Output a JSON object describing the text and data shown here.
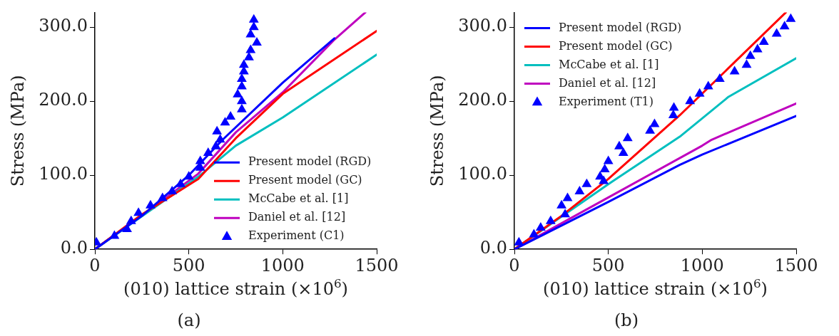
{
  "chart_data": [
    {
      "type": "line",
      "xlabel": "(010) lattice strain (×10$^{6}$)",
      "ylabel": "Stress (MPa)",
      "xlim": [
        0,
        1500
      ],
      "ylim": [
        0,
        320
      ],
      "xticks": [
        0,
        500,
        1000,
        1500
      ],
      "yticks": [
        {
          "value": 0,
          "label": "0.0"
        },
        {
          "value": 100,
          "label": "100.0"
        },
        {
          "value": 200,
          "label": "200.0"
        },
        {
          "value": 300,
          "label": "300.0"
        }
      ],
      "grid": false,
      "legend": "bottom right",
      "annotations": [
        "(a)"
      ],
      "series": [
        {
          "name": "Present model (RGD)",
          "color": "#0000ff",
          "marker": "none",
          "x": [
            0,
            250,
            500,
            680,
            1000,
            1275
          ],
          "values": [
            0,
            45,
            100,
            148,
            225,
            285
          ]
        },
        {
          "name": "Present model (GC)",
          "color": "#ff0000",
          "marker": "none",
          "x": [
            0,
            250,
            550,
            750,
            1000,
            1500
          ],
          "values": [
            0,
            47,
            95,
            150,
            210,
            295
          ]
        },
        {
          "name": "McCabe et al. [1]",
          "color": "#00bfbf",
          "marker": "none",
          "x": [
            0,
            550,
            750,
            1000,
            1500
          ],
          "values": [
            0,
            98,
            140,
            178,
            263
          ]
        },
        {
          "name": "Daniel et al. [12]",
          "color": "#bf00bf",
          "marker": "none",
          "x": [
            0,
            300,
            550,
            750,
            1000,
            1270,
            1440
          ],
          "values": [
            0,
            55,
            102,
            158,
            212,
            282,
            320
          ]
        },
        {
          "name": "Experiment (C1)",
          "type": "scatter",
          "color": "#0000ff",
          "marker": "triangle",
          "x": [
            8,
            104,
            171,
            193,
            232,
            296,
            360,
            411,
            456,
            500,
            561,
            561,
            603,
            644,
            667,
            650,
            693,
            722,
            782,
            782,
            760,
            782,
            782,
            793,
            793,
            820,
            829,
            862,
            829,
            846,
            846
          ],
          "values": [
            9,
            18,
            27,
            38,
            49,
            59,
            69,
            78,
            88,
            98,
            110,
            119,
            130,
            139,
            148,
            159,
            171,
            179,
            189,
            200,
            209,
            220,
            230,
            240,
            249,
            259,
            269,
            279,
            290,
            300,
            310
          ]
        }
      ]
    },
    {
      "type": "line",
      "xlabel": "(010) lattice strain (×10$^{6}$)",
      "ylabel": "Stress (MPa)",
      "xlim": [
        0,
        1500
      ],
      "ylim": [
        0,
        320
      ],
      "xticks": [
        0,
        500,
        1000,
        1500
      ],
      "yticks": [
        {
          "value": 0,
          "label": "0.0"
        },
        {
          "value": 100,
          "label": "100.0"
        },
        {
          "value": 200,
          "label": "200.0"
        },
        {
          "value": 300,
          "label": "300.0"
        }
      ],
      "grid": false,
      "legend": "top left",
      "annotations": [
        "(b)"
      ],
      "series": [
        {
          "name": "Present model (RGD)",
          "color": "#0000ff",
          "marker": "none",
          "x": [
            0,
            500,
            880,
            1000,
            1500
          ],
          "values": [
            0,
            64,
            114,
            128,
            180
          ]
        },
        {
          "name": "Present model (GC)",
          "color": "#ff0000",
          "marker": "none",
          "x": [
            0,
            250,
            500,
            880,
            1080,
            1445
          ],
          "values": [
            0,
            45,
            95,
            181,
            230,
            320
          ]
        },
        {
          "name": "McCabe et al. [1]",
          "color": "#00bfbf",
          "marker": "none",
          "x": [
            0,
            500,
            880,
            1140,
            1500
          ],
          "values": [
            0,
            88,
            152,
            206,
            258
          ]
        },
        {
          "name": "Daniel et al. [12]",
          "color": "#bf00bf",
          "marker": "none",
          "x": [
            0,
            500,
            1000,
            1050,
            1500
          ],
          "values": [
            0,
            70,
            140,
            148,
            197
          ]
        },
        {
          "name": "Experiment (T1)",
          "type": "scatter",
          "color": "#0000ff",
          "marker": "triangle",
          "x": [
            24,
            104,
            140,
            193,
            251,
            270,
            283,
            347,
            385,
            456,
            475,
            481,
            500,
            558,
            580,
            603,
            722,
            746,
            846,
            849,
            935,
            986,
            1032,
            1093,
            1172,
            1236,
            1256,
            1294,
            1328,
            1396,
            1438,
            1471
          ],
          "values": [
            9,
            20,
            29,
            38,
            59,
            47,
            69,
            78,
            88,
            98,
            92,
            108,
            119,
            139,
            130,
            150,
            160,
            169,
            181,
            191,
            200,
            210,
            220,
            230,
            240,
            249,
            261,
            270,
            280,
            291,
            301,
            311
          ]
        }
      ]
    }
  ]
}
